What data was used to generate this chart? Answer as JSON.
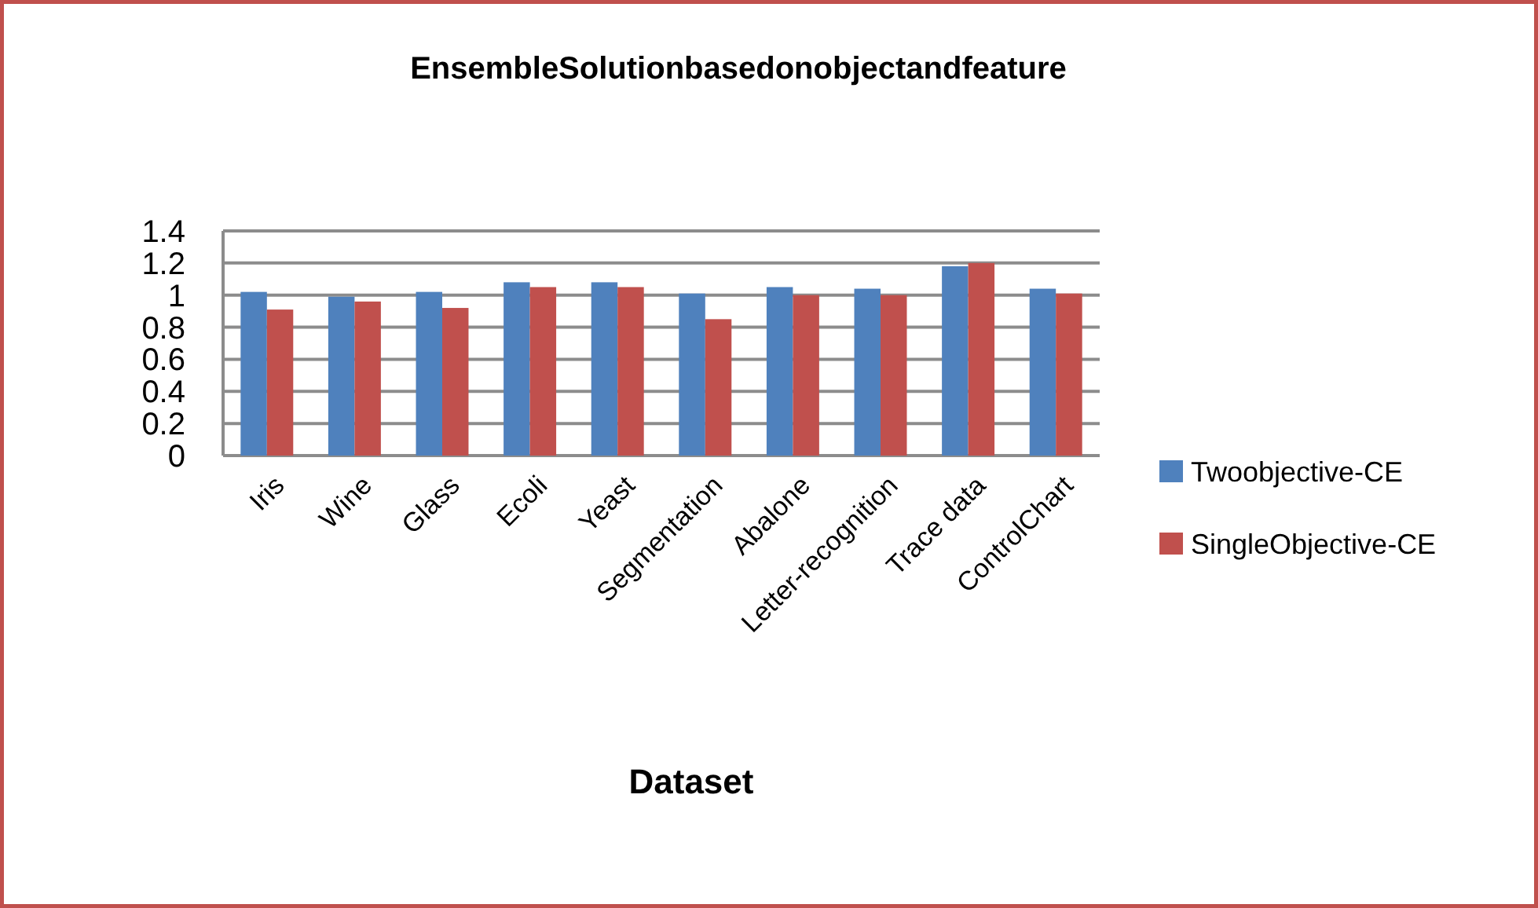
{
  "chart_data": {
    "type": "bar",
    "title": "EnsembleSolutionbasedonobjectandfeature",
    "xlabel": "Dataset",
    "categories": [
      "Iris",
      "Wine",
      "Glass",
      "Ecoli",
      "Yeast",
      "Segmentation",
      "Abalone",
      "Letter-recognition",
      "Trace data",
      "ControlChart"
    ],
    "series": [
      {
        "name": "Twoobjective-CE",
        "color": "#4f81bd",
        "values": [
          1.02,
          0.99,
          1.02,
          1.08,
          1.08,
          1.01,
          1.05,
          1.04,
          1.18,
          1.04
        ]
      },
      {
        "name": "SingleObjective-CE",
        "color": "#c0504d",
        "values": [
          0.91,
          0.96,
          0.92,
          1.05,
          1.05,
          0.85,
          1.0,
          1.0,
          1.2,
          1.01
        ]
      }
    ],
    "ylim": [
      0,
      1.4
    ],
    "yticks": [
      0,
      0.2,
      0.4,
      0.6,
      0.8,
      1,
      1.2,
      1.4
    ],
    "grid": "y",
    "legend": "right"
  }
}
